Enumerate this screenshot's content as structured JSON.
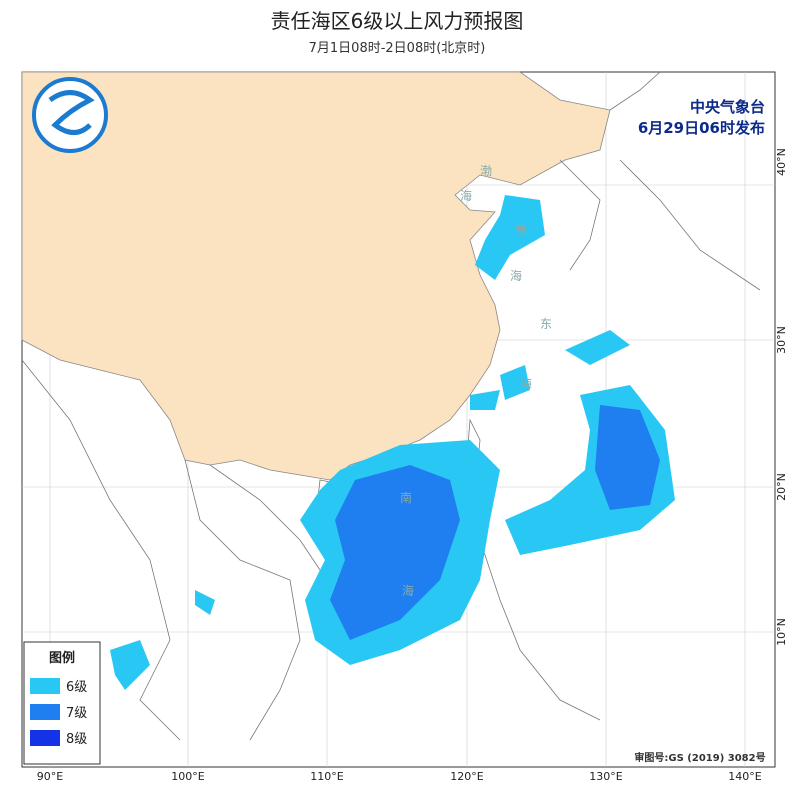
{
  "header": {
    "title": "责任海区6级以上风力预报图",
    "subtitle": "7月1日08时-2日08时(北京时)"
  },
  "issuer": {
    "name": "中央气象台",
    "time": "6月29日06时发布"
  },
  "legend": {
    "title": "图例",
    "items": [
      {
        "label": "6级",
        "color": "#29c8f4"
      },
      {
        "label": "7级",
        "color": "#1f7ef0"
      },
      {
        "label": "8级",
        "color": "#1432e6"
      }
    ]
  },
  "map": {
    "longitudes": [
      "90°E",
      "100°E",
      "110°E",
      "120°E",
      "130°E",
      "140°E"
    ],
    "latitudes": [
      "40°N",
      "30°N",
      "20°N",
      "10°N"
    ],
    "seas": [
      "渤",
      "海",
      "黄",
      "海",
      "东",
      "海",
      "南",
      "海"
    ],
    "approval": "审图号:GS (2019) 3082号"
  }
}
